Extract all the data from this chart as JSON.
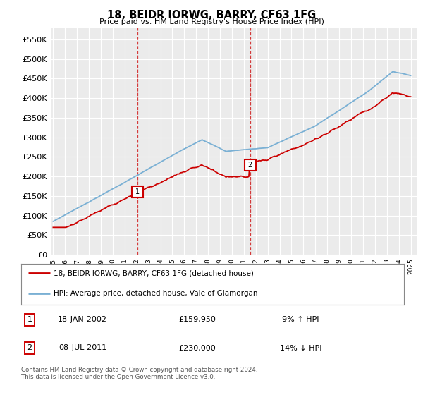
{
  "title": "18, BEIDR IORWG, BARRY, CF63 1FG",
  "subtitle": "Price paid vs. HM Land Registry's House Price Index (HPI)",
  "ytick_values": [
    0,
    50000,
    100000,
    150000,
    200000,
    250000,
    300000,
    350000,
    400000,
    450000,
    500000,
    550000
  ],
  "ylim": [
    0,
    580000
  ],
  "xlim_start": 1994.8,
  "xlim_end": 2025.5,
  "background_color": "#ffffff",
  "plot_bg_color": "#ebebeb",
  "grid_color": "#ffffff",
  "red_color": "#cc0000",
  "blue_color": "#7ab0d4",
  "sale1_year": 2002.05,
  "sale1_price": 159950,
  "sale2_year": 2011.52,
  "sale2_price": 230000,
  "legend_line1": "18, BEIDR IORWG, BARRY, CF63 1FG (detached house)",
  "legend_line2": "HPI: Average price, detached house, Vale of Glamorgan",
  "table_row1_num": "1",
  "table_row1_date": "18-JAN-2002",
  "table_row1_price": "£159,950",
  "table_row1_hpi": "9% ↑ HPI",
  "table_row2_num": "2",
  "table_row2_date": "08-JUL-2011",
  "table_row2_price": "£230,000",
  "table_row2_hpi": "14% ↓ HPI",
  "footnote": "Contains HM Land Registry data © Crown copyright and database right 2024.\nThis data is licensed under the Open Government Licence v3.0.",
  "xtick_years": [
    "1995",
    "1996",
    "1997",
    "1998",
    "1999",
    "2000",
    "2001",
    "2002",
    "2003",
    "2004",
    "2005",
    "2006",
    "2007",
    "2008",
    "2009",
    "2010",
    "2011",
    "2012",
    "2013",
    "2014",
    "2015",
    "2016",
    "2017",
    "2018",
    "2019",
    "2020",
    "2021",
    "2022",
    "2023",
    "2024",
    "2025"
  ]
}
